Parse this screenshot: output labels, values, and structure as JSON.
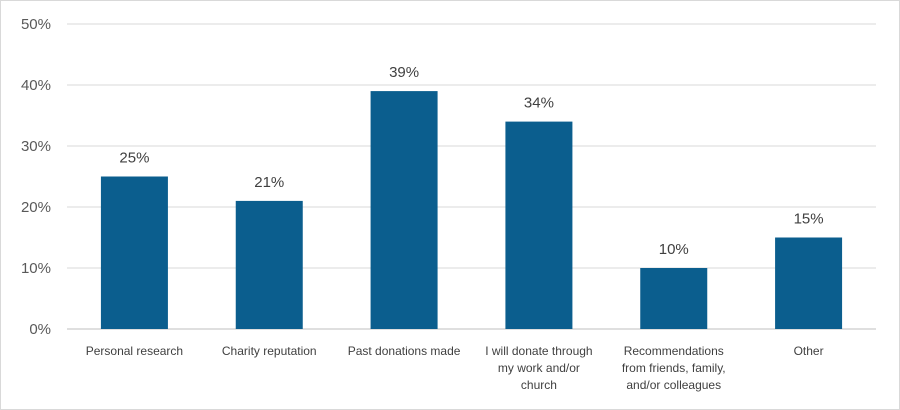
{
  "chart_data": {
    "type": "bar",
    "categories": [
      [
        "Personal research"
      ],
      [
        "Charity reputation"
      ],
      [
        "Past donations made"
      ],
      [
        "I will donate through",
        "my work and/or",
        "church"
      ],
      [
        "Recommendations",
        "from friends, family,",
        "and/or colleagues"
      ],
      [
        "Other"
      ]
    ],
    "values": [
      25,
      21,
      39,
      34,
      10,
      15
    ],
    "data_labels": [
      "25%",
      "21%",
      "39%",
      "34%",
      "10%",
      "15%"
    ],
    "y_ticks": [
      "0%",
      "10%",
      "20%",
      "30%",
      "40%",
      "50%"
    ],
    "ylim": [
      0,
      50
    ],
    "bar_color": "#0b5e8e",
    "grid": true
  }
}
